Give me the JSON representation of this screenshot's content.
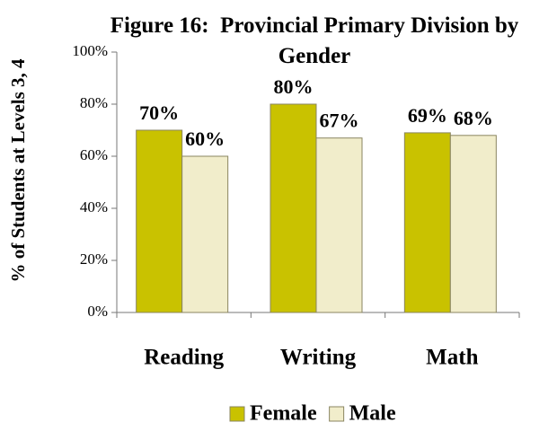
{
  "chart_data": {
    "type": "bar",
    "title": "Figure 16:  Provincial Primary Division by Gender",
    "y_label": "% of Students at Levels 3, 4",
    "categories": [
      "Reading",
      "Writing",
      "Math"
    ],
    "series": [
      {
        "name": "Female",
        "color": "#c9c200",
        "values": [
          70,
          80,
          69
        ],
        "value_labels": [
          "70%",
          "80%",
          "69%"
        ]
      },
      {
        "name": "Male",
        "color": "#f1edcb",
        "values": [
          60,
          67,
          68
        ],
        "value_labels": [
          "60%",
          "67%",
          "68%"
        ]
      }
    ],
    "ylim": [
      0,
      100
    ],
    "yticks": [
      {
        "value": 0,
        "label": "0%"
      },
      {
        "value": 20,
        "label": "20%"
      },
      {
        "value": 40,
        "label": "40%"
      },
      {
        "value": 60,
        "label": "60%"
      },
      {
        "value": 80,
        "label": "80%"
      },
      {
        "value": 100,
        "label": "100%"
      }
    ],
    "legend": "bottom"
  }
}
